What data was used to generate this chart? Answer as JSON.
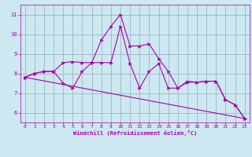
{
  "title": "",
  "xlabel": "Windchill (Refroidissement éolien,°C)",
  "background_color": "#cce8f0",
  "line_color": "#aa00aa",
  "grid_color": "#99aabb",
  "xlim": [
    -0.5,
    23.5
  ],
  "ylim": [
    5.5,
    11.5
  ],
  "yticks": [
    6,
    7,
    8,
    9,
    10,
    11
  ],
  "xticks": [
    0,
    1,
    2,
    3,
    4,
    5,
    6,
    7,
    8,
    9,
    10,
    11,
    12,
    13,
    14,
    15,
    16,
    17,
    18,
    19,
    20,
    21,
    22,
    23
  ],
  "line1_x": [
    0,
    1,
    2,
    3,
    4,
    5,
    6,
    7,
    8,
    9,
    10,
    11,
    12,
    13,
    14,
    15,
    16,
    17,
    18,
    19,
    20,
    21,
    22,
    23
  ],
  "line1_y": [
    7.8,
    8.0,
    8.1,
    8.1,
    8.55,
    8.6,
    8.55,
    8.55,
    9.7,
    10.4,
    11.0,
    9.4,
    9.4,
    9.5,
    8.75,
    8.1,
    7.25,
    7.6,
    7.55,
    7.6,
    7.6,
    6.65,
    6.4,
    5.7
  ],
  "line2_x": [
    0,
    1,
    2,
    3,
    4,
    5,
    6,
    7,
    8,
    9,
    10,
    11,
    12,
    13,
    14,
    15,
    16,
    17,
    18,
    19,
    20,
    21,
    22,
    23
  ],
  "line2_y": [
    7.8,
    8.0,
    8.1,
    8.1,
    7.5,
    7.25,
    8.1,
    8.55,
    8.55,
    8.55,
    10.4,
    8.5,
    7.25,
    8.1,
    8.5,
    7.25,
    7.25,
    7.55,
    7.55,
    7.6,
    7.6,
    6.65,
    6.4,
    5.7
  ],
  "line3_x": [
    0,
    23
  ],
  "line3_y": [
    7.8,
    5.7
  ]
}
